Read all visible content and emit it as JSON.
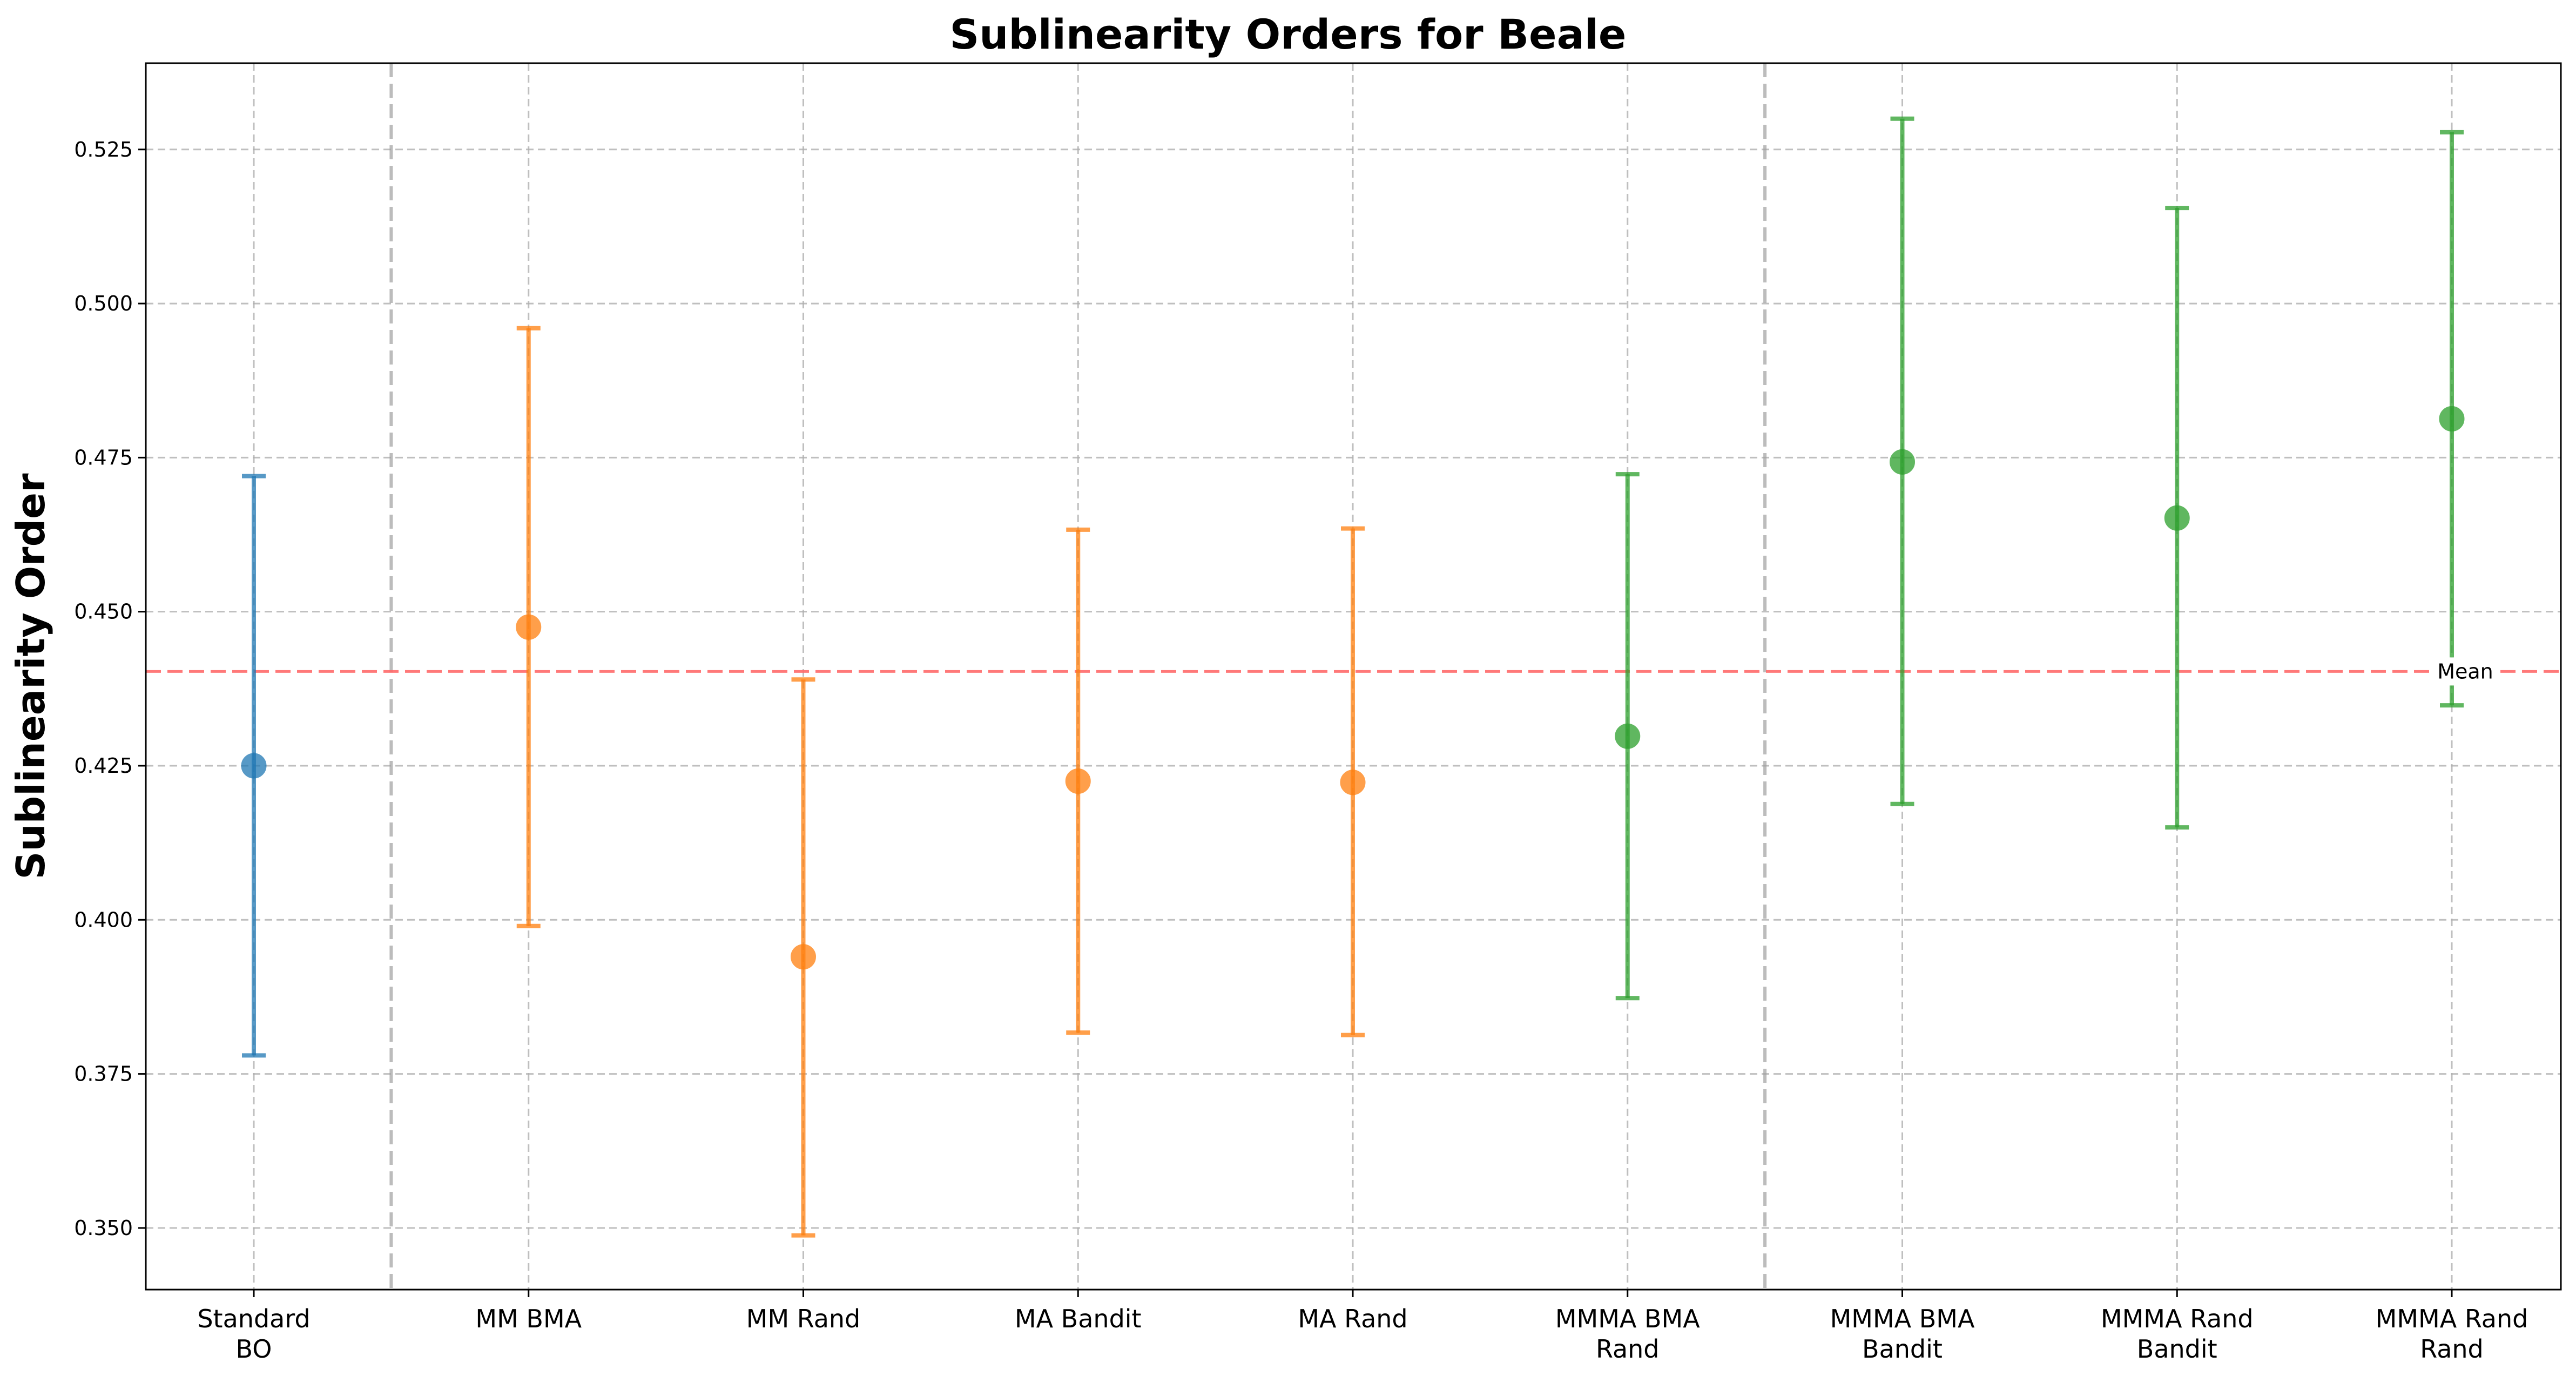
{
  "chart_data": {
    "type": "scatter",
    "title": "Sublinearity Orders for Beale",
    "xlabel": "",
    "ylabel": "Sublinearity Order",
    "ylim": [
      0.34,
      0.539
    ],
    "y_ticks": [
      "0.350",
      "0.375",
      "0.400",
      "0.425",
      "0.450",
      "0.475",
      "0.500",
      "0.525"
    ],
    "grid": true,
    "categories": [
      [
        "Standard",
        "BO"
      ],
      [
        "MM BMA"
      ],
      [
        "MM Rand"
      ],
      [
        "MA Bandit"
      ],
      [
        "MA Rand"
      ],
      [
        "MMMA BMA",
        "Rand"
      ],
      [
        "MMMA BMA",
        "Bandit"
      ],
      [
        "MMMA Rand",
        "Bandit"
      ],
      [
        "MMMA Rand",
        "Rand"
      ]
    ],
    "points": [
      {
        "value": 0.425,
        "lower": 0.378,
        "upper": 0.472,
        "color": "#1f77b4"
      },
      {
        "value": 0.4475,
        "lower": 0.399,
        "upper": 0.496,
        "color": "#ff7f0e"
      },
      {
        "value": 0.394,
        "lower": 0.3488,
        "upper": 0.439,
        "color": "#ff7f0e"
      },
      {
        "value": 0.4225,
        "lower": 0.3817,
        "upper": 0.4633,
        "color": "#ff7f0e"
      },
      {
        "value": 0.4223,
        "lower": 0.3813,
        "upper": 0.4635,
        "color": "#ff7f0e"
      },
      {
        "value": 0.4298,
        "lower": 0.3873,
        "upper": 0.4723,
        "color": "#2ca02c"
      },
      {
        "value": 0.4743,
        "lower": 0.4188,
        "upper": 0.53,
        "color": "#2ca02c"
      },
      {
        "value": 0.4652,
        "lower": 0.415,
        "upper": 0.5155,
        "color": "#2ca02c"
      },
      {
        "value": 0.4813,
        "lower": 0.4348,
        "upper": 0.5278,
        "color": "#2ca02c"
      }
    ],
    "group_separators_after_index": [
      0,
      5
    ],
    "mean_line": {
      "value": 0.4403,
      "label": "Mean",
      "color": "#ff6b6b"
    }
  }
}
